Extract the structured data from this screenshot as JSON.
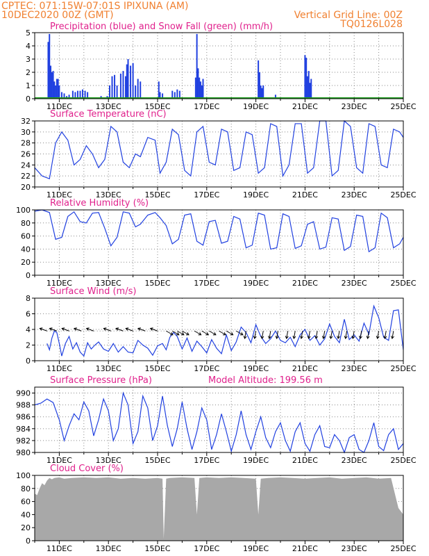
{
  "header": {
    "left_line1": "CPTEC:   071:15W-07:01S   IPIXUNA (AM)",
    "left_line2": "10DEC2020 00Z (GMT)",
    "right_line1": "Vertical Grid Line: 00Z",
    "right_line2": "TQ0126L028"
  },
  "colors": {
    "header": "#f08030",
    "title": "#e0208c",
    "series": "#2040e0",
    "snow": "#20a020",
    "cloud": "#a8a8a8"
  },
  "x_axis": {
    "tick_labels": [
      "11DEC",
      "13DEC",
      "15DEC",
      "17DEC",
      "19DEC",
      "21DEC",
      "23DEC",
      "25DEC"
    ]
  },
  "chart_data": [
    {
      "type": "bar",
      "title": "Precipitation (blue) and Snow Fall (green) (mm/h)",
      "ylim": [
        0,
        5
      ],
      "yticks": [
        0,
        1,
        2,
        3,
        4,
        5
      ],
      "grid": true,
      "series": [
        {
          "name": "Precipitation",
          "color": "#2040e0",
          "mode": "bars",
          "x": [
            0.55,
            0.6,
            0.65,
            0.7,
            0.75,
            0.8,
            0.85,
            0.9,
            0.95,
            1.0,
            1.1,
            1.2,
            1.3,
            1.4,
            1.55,
            1.65,
            1.75,
            1.85,
            1.95,
            2.05,
            2.15,
            2.3,
            2.5,
            2.7,
            2.95,
            3.05,
            3.15,
            3.25,
            3.35,
            3.5,
            3.6,
            3.7,
            3.75,
            3.8,
            3.9,
            4.0,
            4.1,
            4.2,
            4.3,
            5.05,
            5.1,
            5.2,
            5.6,
            5.7,
            5.8,
            5.9,
            6.55,
            6.6,
            6.65,
            6.7,
            6.75,
            6.8,
            6.85,
            9.1,
            9.15,
            9.2,
            9.25,
            9.3,
            9.8,
            11.0,
            11.05,
            11.1,
            11.15,
            11.2,
            11.25
          ],
          "values": [
            4.3,
            4.9,
            2.5,
            2.0,
            2.1,
            1.3,
            1.0,
            1.5,
            1.5,
            1.0,
            0.5,
            0.4,
            0.2,
            0.3,
            0.6,
            0.5,
            0.6,
            0.6,
            0.7,
            0.6,
            0.5,
            0.1,
            0.1,
            0.2,
            0.2,
            1.0,
            1.7,
            1.8,
            1.0,
            1.9,
            2.1,
            1.7,
            2.6,
            3.0,
            2.5,
            2.7,
            1.0,
            1.5,
            1.3,
            1.3,
            0.5,
            0.4,
            0.6,
            0.5,
            0.7,
            0.6,
            1.6,
            4.9,
            2.3,
            1.6,
            1.3,
            1.0,
            1.5,
            2.9,
            2.0,
            1.0,
            0.8,
            1.0,
            0.3,
            3.3,
            3.1,
            1.7,
            2.1,
            1.2,
            1.5
          ]
        },
        {
          "name": "Snow Fall",
          "color": "#20a020",
          "mode": "baseline",
          "x": [
            0,
            15
          ],
          "values": [
            0.05,
            0.05
          ]
        }
      ]
    },
    {
      "type": "line",
      "title": "Surface Temperature (nC)",
      "ylim": [
        20,
        32
      ],
      "yticks": [
        20,
        22,
        24,
        26,
        28,
        30,
        32
      ],
      "grid": true,
      "series": [
        {
          "color": "#2040e0",
          "x": [
            0,
            0.3,
            0.6,
            0.85,
            1.1,
            1.35,
            1.6,
            1.85,
            2.1,
            2.35,
            2.6,
            2.85,
            3.1,
            3.35,
            3.6,
            3.85,
            4.1,
            4.3,
            4.6,
            4.9,
            5.1,
            5.35,
            5.6,
            5.85,
            6.1,
            6.35,
            6.6,
            6.85,
            7.1,
            7.35,
            7.6,
            7.85,
            8.1,
            8.35,
            8.6,
            8.85,
            9.1,
            9.35,
            9.6,
            9.85,
            10.1,
            10.35,
            10.6,
            10.85,
            11.1,
            11.35,
            11.6,
            11.85,
            12.1,
            12.35,
            12.6,
            12.85,
            13.1,
            13.35,
            13.6,
            13.85,
            14.1,
            14.35,
            14.6,
            14.85,
            15.0
          ],
          "values": [
            23.5,
            22.0,
            21.5,
            28.0,
            30.0,
            28.5,
            24.0,
            25.0,
            27.5,
            26.0,
            23.5,
            25.0,
            31.0,
            30.0,
            24.5,
            23.5,
            26.0,
            25.5,
            29.0,
            28.5,
            22.5,
            24.5,
            30.5,
            29.5,
            23.0,
            22.0,
            30.0,
            31.0,
            24.5,
            24.0,
            30.5,
            30.0,
            23.0,
            23.5,
            30.0,
            29.5,
            22.5,
            23.5,
            31.5,
            31.0,
            22.0,
            24.0,
            31.5,
            31.5,
            22.5,
            23.5,
            32.0,
            32.0,
            22.0,
            23.0,
            32.0,
            31.0,
            23.5,
            22.5,
            31.5,
            31.0,
            24.0,
            23.5,
            30.5,
            30.0,
            29.0
          ]
        }
      ]
    },
    {
      "type": "line",
      "title": "Relative Humidity (%)",
      "ylim": [
        0,
        100
      ],
      "yticks": [
        0,
        20,
        40,
        60,
        80,
        100
      ],
      "grid": true,
      "series": [
        {
          "color": "#2040e0",
          "x": [
            0,
            0.3,
            0.6,
            0.85,
            1.1,
            1.35,
            1.6,
            1.85,
            2.1,
            2.35,
            2.6,
            2.85,
            3.1,
            3.35,
            3.6,
            3.85,
            4.1,
            4.3,
            4.6,
            4.9,
            5.1,
            5.35,
            5.6,
            5.85,
            6.1,
            6.35,
            6.6,
            6.85,
            7.1,
            7.35,
            7.6,
            7.85,
            8.1,
            8.35,
            8.6,
            8.85,
            9.1,
            9.35,
            9.6,
            9.85,
            10.1,
            10.35,
            10.6,
            10.85,
            11.1,
            11.35,
            11.6,
            11.85,
            12.1,
            12.35,
            12.6,
            12.85,
            13.1,
            13.35,
            13.6,
            13.85,
            14.1,
            14.35,
            14.6,
            14.85,
            15.0
          ],
          "values": [
            98,
            100,
            96,
            55,
            58,
            90,
            97,
            82,
            80,
            95,
            96,
            72,
            45,
            58,
            97,
            95,
            74,
            78,
            92,
            96,
            88,
            76,
            48,
            55,
            92,
            94,
            52,
            46,
            82,
            84,
            49,
            52,
            90,
            86,
            42,
            46,
            95,
            92,
            40,
            42,
            94,
            90,
            41,
            45,
            78,
            82,
            40,
            43,
            88,
            86,
            38,
            44,
            92,
            90,
            36,
            42,
            95,
            88,
            42,
            48,
            58
          ]
        }
      ]
    },
    {
      "type": "line",
      "title": "Surface Wind (m/s)",
      "ylim": [
        0,
        8
      ],
      "yticks": [
        0,
        2,
        4,
        6,
        8
      ],
      "grid": true,
      "series": [
        {
          "color": "#2040e0",
          "x": [
            0.5,
            0.6,
            0.7,
            0.8,
            0.9,
            1.0,
            1.1,
            1.25,
            1.4,
            1.55,
            1.7,
            1.85,
            2.0,
            2.15,
            2.3,
            2.45,
            2.6,
            2.8,
            3.0,
            3.2,
            3.4,
            3.6,
            3.8,
            4.0,
            4.2,
            4.4,
            4.6,
            4.8,
            5.0,
            5.2,
            5.35,
            5.5,
            5.65,
            5.8,
            6.0,
            6.2,
            6.4,
            6.6,
            6.8,
            7.0,
            7.2,
            7.4,
            7.6,
            7.8,
            8.0,
            8.2,
            8.4,
            8.6,
            8.8,
            9.0,
            9.2,
            9.4,
            9.6,
            9.8,
            10.0,
            10.2,
            10.4,
            10.6,
            10.8,
            11.0,
            11.2,
            11.4,
            11.6,
            11.8,
            12.0,
            12.2,
            12.4,
            12.6,
            12.8,
            13.0,
            13.2,
            13.4,
            13.6,
            13.8,
            14.0,
            14.2,
            14.4,
            14.6,
            14.8,
            15.0
          ],
          "values": [
            2.2,
            1.4,
            2.9,
            3.8,
            3.6,
            2.2,
            0.6,
            2.2,
            3.1,
            1.5,
            2.3,
            1.1,
            0.6,
            2.3,
            1.5,
            2.0,
            2.4,
            1.5,
            1.2,
            2.2,
            1.1,
            1.8,
            1.1,
            1.0,
            2.6,
            2.0,
            1.6,
            0.7,
            1.9,
            2.2,
            1.4,
            3.0,
            3.6,
            3.1,
            1.5,
            2.9,
            1.2,
            2.5,
            1.8,
            1.0,
            2.7,
            1.6,
            0.9,
            3.3,
            1.3,
            2.4,
            4.3,
            3.6,
            2.3,
            4.6,
            3.1,
            2.2,
            2.8,
            3.8,
            2.6,
            2.3,
            3.0,
            1.8,
            3.3,
            4.0,
            2.6,
            3.2,
            2.0,
            2.8,
            4.7,
            3.1,
            2.3,
            5.3,
            2.7,
            3.3,
            2.5,
            4.8,
            3.4,
            7.0,
            5.5,
            3.0,
            2.6,
            6.4,
            6.5,
            1.4
          ]
        }
      ],
      "vector_wind_speed_level": 3.8,
      "vector_x": [
        0.5,
        0.9,
        1.4,
        1.9,
        2.4,
        3.1,
        3.6,
        4.0,
        4.5,
        5.0,
        5.35,
        5.6,
        5.8,
        6.0,
        6.5,
        6.8,
        7.1,
        7.5,
        7.8,
        8.2,
        8.6,
        9.0,
        9.3,
        9.6,
        9.9,
        10.3,
        10.6,
        10.9,
        11.2,
        11.5,
        11.8,
        12.1,
        12.4,
        12.7,
        13.0,
        13.3,
        13.6,
        14.0,
        14.3,
        14.6
      ]
    },
    {
      "type": "line",
      "title": "Surface Pressure (hPa)",
      "subtitle": "Model Altitude: 199.56 m",
      "ylim": [
        980,
        991
      ],
      "yticks": [
        980,
        982,
        984,
        986,
        988,
        990
      ],
      "grid": true,
      "series": [
        {
          "color": "#2040e0",
          "x": [
            0,
            0.25,
            0.5,
            0.75,
            1.0,
            1.2,
            1.4,
            1.6,
            1.8,
            2.0,
            2.2,
            2.4,
            2.6,
            2.8,
            3.0,
            3.2,
            3.4,
            3.6,
            3.8,
            4.0,
            4.2,
            4.4,
            4.6,
            4.8,
            5.0,
            5.2,
            5.4,
            5.6,
            5.8,
            6.0,
            6.2,
            6.4,
            6.6,
            6.8,
            7.0,
            7.2,
            7.4,
            7.6,
            7.8,
            8.0,
            8.2,
            8.4,
            8.6,
            8.8,
            9.0,
            9.2,
            9.4,
            9.6,
            9.8,
            10.0,
            10.2,
            10.4,
            10.6,
            10.8,
            11.0,
            11.2,
            11.4,
            11.6,
            11.8,
            12.0,
            12.2,
            12.4,
            12.6,
            12.8,
            13.0,
            13.2,
            13.4,
            13.6,
            13.8,
            14.0,
            14.2,
            14.4,
            14.6,
            14.8,
            15.0
          ],
          "values": [
            988.0,
            988.3,
            989.0,
            988.4,
            985.5,
            982.0,
            984.5,
            986.5,
            985.5,
            988.5,
            987.0,
            982.8,
            985.5,
            989.0,
            987.0,
            982.0,
            984.0,
            990.0,
            988.0,
            981.5,
            983.5,
            989.5,
            987.5,
            982.0,
            984.5,
            989.5,
            984.5,
            981.0,
            984.0,
            988.5,
            984.0,
            980.5,
            983.5,
            987.5,
            985.5,
            980.5,
            983.0,
            986.5,
            983.5,
            980.2,
            983.0,
            987.0,
            983.0,
            980.5,
            983.5,
            986.0,
            982.5,
            980.8,
            983.5,
            985.0,
            982.0,
            980.2,
            983.5,
            985.0,
            981.5,
            980.2,
            983.0,
            984.5,
            981.0,
            980.8,
            983.0,
            982.0,
            980.0,
            982.5,
            983.0,
            980.5,
            980.0,
            982.0,
            985.0,
            981.0,
            980.3,
            983.0,
            984.0,
            980.5,
            981.5
          ]
        }
      ]
    },
    {
      "type": "area",
      "title": "Cloud Cover (%)",
      "ylim": [
        0,
        100
      ],
      "yticks": [
        0,
        20,
        40,
        60,
        80,
        100
      ],
      "grid": true,
      "series": [
        {
          "color": "#a8a8a8",
          "x": [
            0,
            0.1,
            0.2,
            0.3,
            0.4,
            0.5,
            0.6,
            0.7,
            0.8,
            1.0,
            1.2,
            1.5,
            2.0,
            2.5,
            3.0,
            3.5,
            4.0,
            4.5,
            5.0,
            5.2,
            5.25,
            5.35,
            5.5,
            6.0,
            6.5,
            6.6,
            6.7,
            7.0,
            7.5,
            8.0,
            8.5,
            9.0,
            9.1,
            9.2,
            9.5,
            10.0,
            10.5,
            11.0,
            11.5,
            12.0,
            12.5,
            13.0,
            13.5,
            14.0,
            14.5,
            14.8,
            15.0
          ],
          "values": [
            72,
            70,
            80,
            88,
            85,
            92,
            96,
            94,
            96,
            97,
            95,
            96,
            97,
            96,
            97,
            95,
            96,
            95,
            96,
            95,
            3,
            95,
            96,
            97,
            96,
            40,
            96,
            97,
            96,
            97,
            96,
            95,
            40,
            95,
            96,
            97,
            96,
            95,
            96,
            97,
            95,
            96,
            97,
            95,
            96,
            50,
            40
          ]
        }
      ]
    }
  ]
}
